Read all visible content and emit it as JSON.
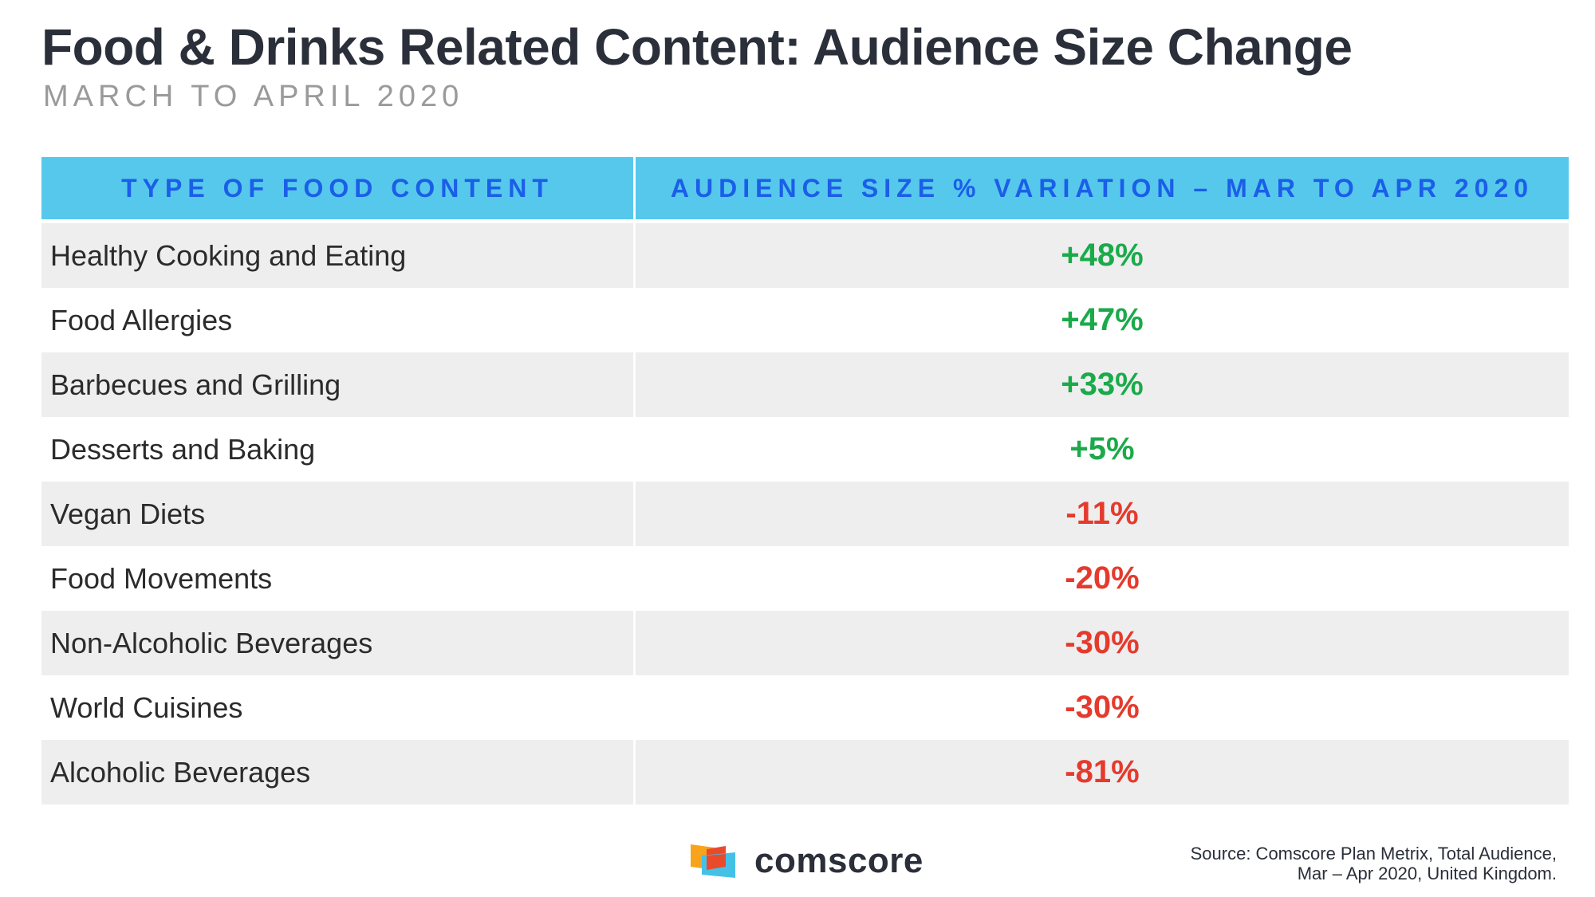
{
  "title": "Food & Drinks Related Content: Audience Size Change",
  "subtitle": "MARCH TO APRIL 2020",
  "colors": {
    "header_bg": "#56c8ec",
    "header_text": "#1b5ee8",
    "positive": "#1aaa4a",
    "negative": "#e53a2c",
    "row_shade": "#eeeeef"
  },
  "chart_data": {
    "type": "table",
    "columns": [
      "TYPE OF FOOD CONTENT",
      "AUDIENCE SIZE % VARIATION – MAR TO APR 2020"
    ],
    "rows": [
      {
        "category": "Healthy Cooking and Eating",
        "value": 48,
        "label": "+48%"
      },
      {
        "category": "Food Allergies",
        "value": 47,
        "label": "+47%"
      },
      {
        "category": "Barbecues and Grilling",
        "value": 33,
        "label": "+33%"
      },
      {
        "category": "Desserts and Baking",
        "value": 5,
        "label": "+5%"
      },
      {
        "category": "Vegan Diets",
        "value": -11,
        "label": "-11%"
      },
      {
        "category": "Food Movements",
        "value": -20,
        "label": "-20%"
      },
      {
        "category": "Non-Alcoholic Beverages",
        "value": -30,
        "label": "-30%"
      },
      {
        "category": "World Cuisines",
        "value": -30,
        "label": "-30%"
      },
      {
        "category": "Alcoholic Beverages",
        "value": -81,
        "label": "-81%"
      }
    ]
  },
  "logo": {
    "text": "comscore"
  },
  "source": {
    "line1": "Source: Comscore Plan Metrix, Total Audience,",
    "line2": "Mar – Apr 2020, United Kingdom."
  }
}
